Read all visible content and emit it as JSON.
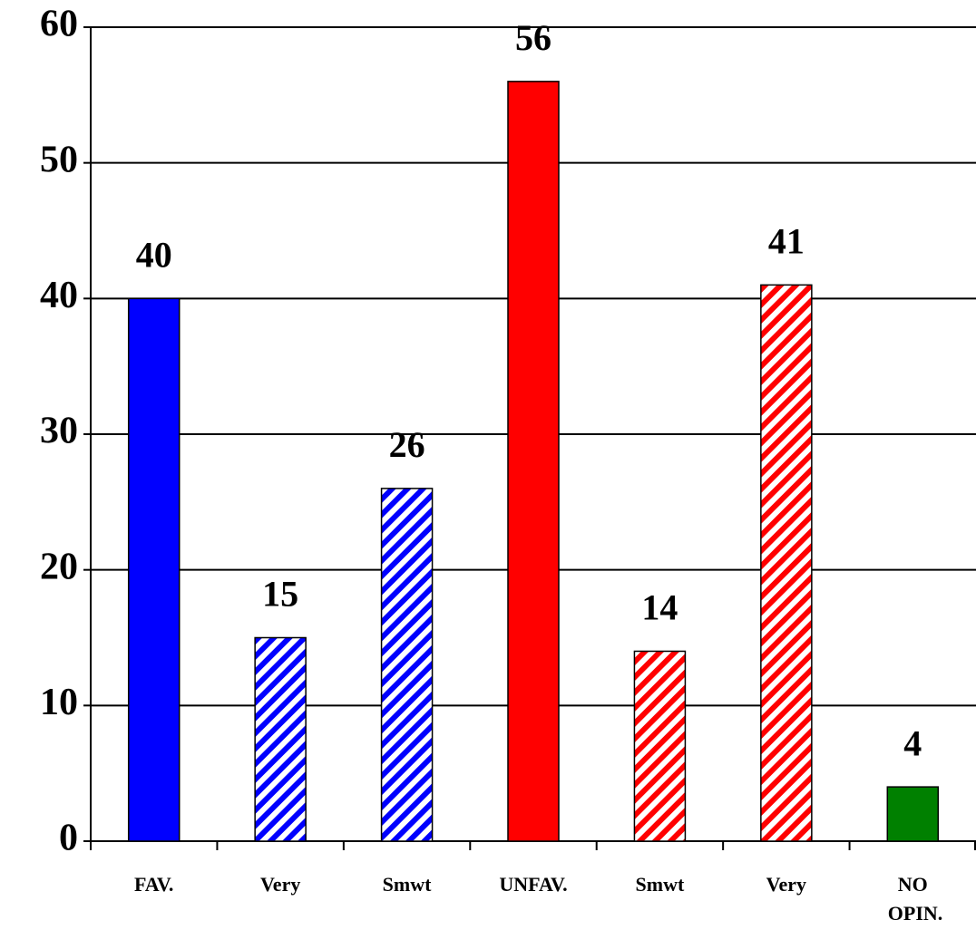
{
  "chart_data": {
    "type": "bar",
    "categories": [
      "FAV.",
      "Very",
      "Smwt",
      "UNFAV.",
      "Smwt",
      "Very",
      "NO OPIN."
    ],
    "values": [
      40,
      15,
      26,
      56,
      14,
      41,
      4
    ],
    "colors": [
      "#0000ff",
      "#0000ff",
      "#0000ff",
      "#ff0000",
      "#ff0000",
      "#ff0000",
      "#008000"
    ],
    "hatched": [
      false,
      true,
      true,
      false,
      true,
      true,
      false
    ],
    "ylim": [
      0,
      60
    ],
    "yticks": [
      0,
      10,
      20,
      30,
      40,
      50,
      60
    ],
    "grid": true
  }
}
